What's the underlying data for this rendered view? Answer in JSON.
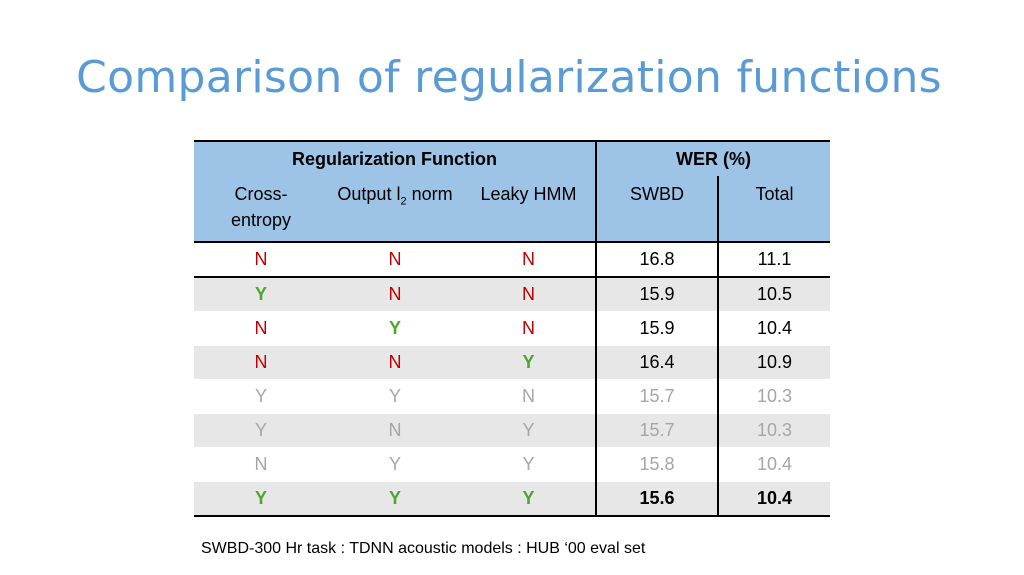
{
  "slide": {
    "title": "Comparison of regularization functions",
    "caption": "SWBD-300 Hr task : TDNN acoustic models : HUB ‘00 eval set"
  },
  "table": {
    "group_headers": {
      "regularization": "Regularization Function",
      "wer": "WER (%)"
    },
    "columns": {
      "cross_entropy_line1": "Cross-",
      "cross_entropy_line2": "entropy",
      "output_norm_pre": "Output l",
      "output_norm_sub": "2",
      "output_norm_post": " norm",
      "leaky_hmm": "Leaky HMM",
      "swbd": "SWBD",
      "total": "Total"
    },
    "rows": [
      {
        "ce": "N",
        "l2": "N",
        "leaky": "N",
        "swbd": "16.8",
        "total": "11.1"
      },
      {
        "ce": "Y",
        "l2": "N",
        "leaky": "N",
        "swbd": "15.9",
        "total": "10.5"
      },
      {
        "ce": "N",
        "l2": "Y",
        "leaky": "N",
        "swbd": "15.9",
        "total": "10.4"
      },
      {
        "ce": "N",
        "l2": "N",
        "leaky": "Y",
        "swbd": "16.4",
        "total": "10.9"
      },
      {
        "ce": "Y",
        "l2": "Y",
        "leaky": "N",
        "swbd": "15.7",
        "total": "10.3"
      },
      {
        "ce": "Y",
        "l2": "N",
        "leaky": "Y",
        "swbd": "15.7",
        "total": "10.3"
      },
      {
        "ce": "N",
        "l2": "Y",
        "leaky": "Y",
        "swbd": "15.8",
        "total": "10.4"
      },
      {
        "ce": "Y",
        "l2": "Y",
        "leaky": "Y",
        "swbd": "15.6",
        "total": "10.4"
      }
    ],
    "colors": {
      "header_bg": "#9dc3e6",
      "yes": "#4ea72e",
      "no": "#c00000",
      "dimmed": "#a6a6a6",
      "alt_row": "#e7e7e7"
    }
  }
}
